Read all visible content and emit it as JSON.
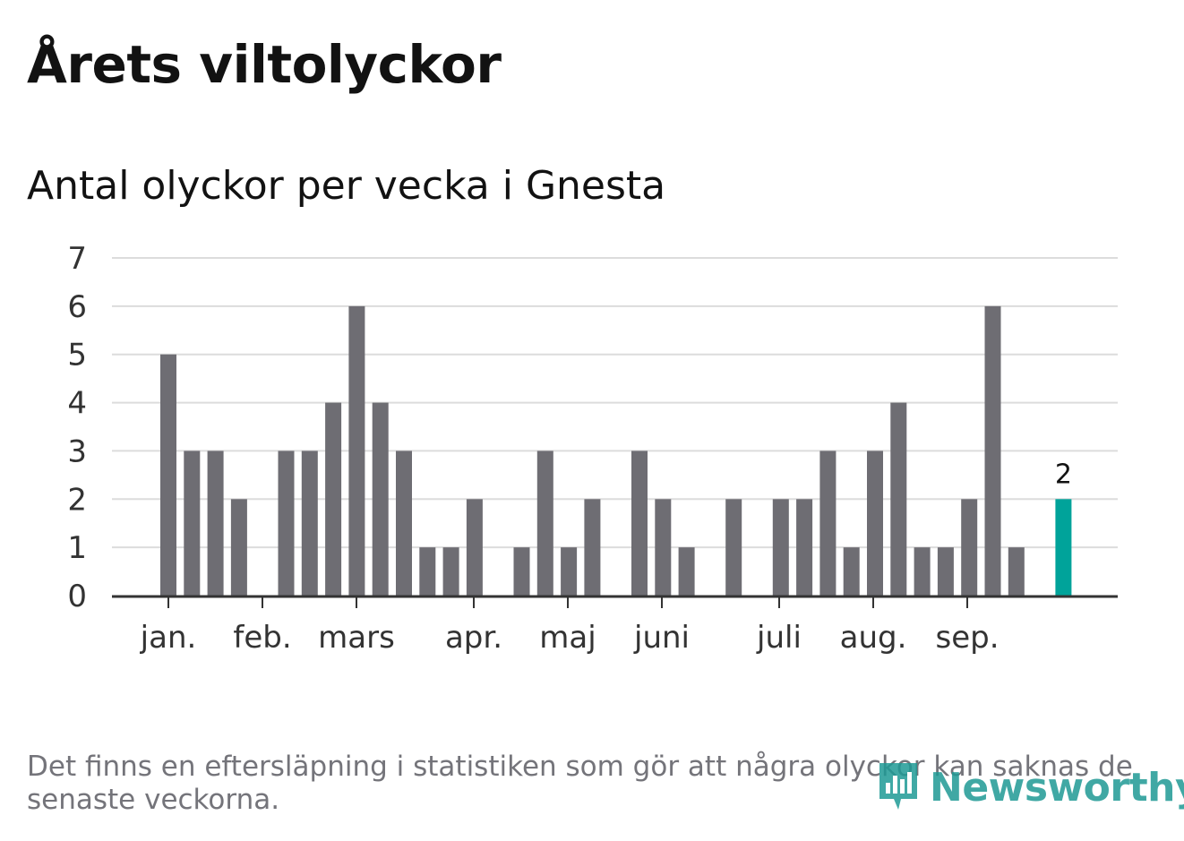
{
  "title": "Årets viltolyckor",
  "subtitle": "Antal olyckor per vecka i Gnesta",
  "footnote": "Det finns en eftersläpning i statistiken som gör att några olyckor kan saknas de senaste veckorna.",
  "logo_text": "Newsworthy",
  "colors": {
    "bar": "#6e6d73",
    "highlight": "#00a39a",
    "grid": "#dcdcdc",
    "axis": "#333333"
  },
  "chart_data": {
    "type": "bar",
    "title": "Antal olyckor per vecka i Gnesta",
    "xlabel": "",
    "ylabel": "",
    "ylim": [
      0,
      7
    ],
    "yticks": [
      0,
      1,
      2,
      3,
      4,
      5,
      6,
      7
    ],
    "weeks": [
      1,
      2,
      3,
      4,
      5,
      6,
      7,
      8,
      9,
      10,
      11,
      12,
      13,
      14,
      15,
      16,
      17,
      18,
      19,
      20,
      21,
      22,
      23,
      24,
      25,
      26,
      27,
      28,
      29,
      30,
      31,
      32,
      33,
      34,
      35,
      36,
      37,
      38,
      39,
      40
    ],
    "values": [
      5,
      3,
      3,
      2,
      0,
      3,
      3,
      4,
      6,
      4,
      3,
      1,
      1,
      2,
      0,
      1,
      3,
      1,
      2,
      0,
      3,
      2,
      1,
      0,
      2,
      0,
      2,
      2,
      3,
      1,
      3,
      4,
      1,
      1,
      2,
      6,
      1,
      0,
      2,
      0
    ],
    "highlight_week": 39,
    "highlight_label": "2",
    "month_labels": [
      {
        "label": "jan.",
        "week": 1
      },
      {
        "label": "feb.",
        "week": 5
      },
      {
        "label": "mars",
        "week": 9
      },
      {
        "label": "apr.",
        "week": 14
      },
      {
        "label": "maj",
        "week": 18
      },
      {
        "label": "juni",
        "week": 22
      },
      {
        "label": "juli",
        "week": 27
      },
      {
        "label": "aug.",
        "week": 31
      },
      {
        "label": "sep.",
        "week": 35
      }
    ]
  }
}
